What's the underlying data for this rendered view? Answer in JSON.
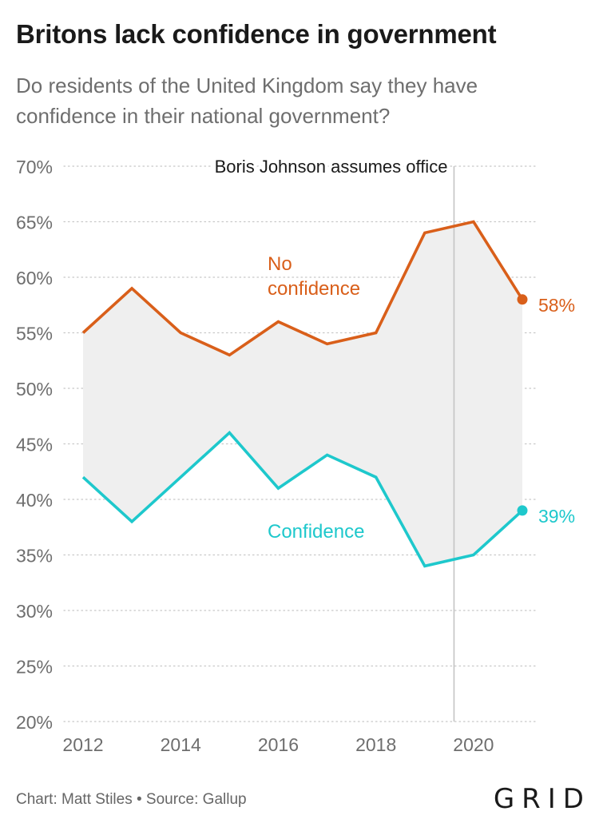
{
  "title": "Britons lack confidence in government",
  "subtitle": "Do residents of the United Kingdom say they have confidence in their national government?",
  "annotation": "Boris Johnson assumes office",
  "footer": "Chart: Matt Stiles • Source: Gallup",
  "logo": "GRID",
  "colors": {
    "no_confidence": "#d95f1a",
    "confidence": "#1ec8cc",
    "band": "#efefef",
    "grid": "#c8c8c8",
    "axis_text": "#6e6e6e"
  },
  "chart_data": {
    "type": "line",
    "x": [
      2012,
      2013,
      2014,
      2015,
      2016,
      2017,
      2018,
      2019,
      2020,
      2021
    ],
    "series": [
      {
        "name": "No confidence",
        "values": [
          55,
          59,
          55,
          53,
          56,
          54,
          55,
          64,
          65,
          58
        ],
        "end_label": "58%"
      },
      {
        "name": "Confidence",
        "values": [
          42,
          38,
          42,
          46,
          41,
          44,
          42,
          34,
          35,
          39
        ],
        "end_label": "39%"
      }
    ],
    "series_labels": {
      "no_confidence_line1": "No",
      "no_confidence_line2": "confidence",
      "confidence": "Confidence"
    },
    "ylim": [
      20,
      70
    ],
    "yticks": [
      20,
      25,
      30,
      35,
      40,
      45,
      50,
      55,
      60,
      65,
      70
    ],
    "ytick_labels": [
      "20%",
      "25%",
      "30%",
      "35%",
      "40%",
      "45%",
      "50%",
      "55%",
      "60%",
      "65%",
      "70%"
    ],
    "xticks": [
      2012,
      2014,
      2016,
      2018,
      2020
    ],
    "xtick_labels": [
      "2012",
      "2014",
      "2016",
      "2018",
      "2020"
    ],
    "event_x": 2019.6,
    "grid": true,
    "xlabel": "",
    "ylabel": ""
  }
}
